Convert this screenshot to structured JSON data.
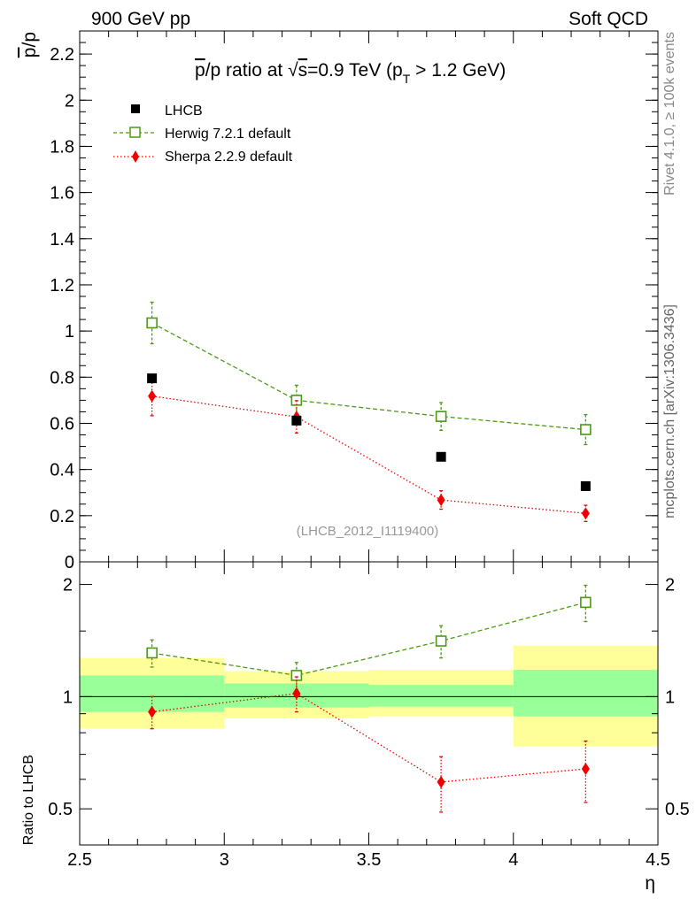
{
  "header": {
    "left": "900 GeV pp",
    "right": "Soft QCD"
  },
  "side_labels": {
    "rivet": "Rivet 4.1.0, ≥ 100k events",
    "mcplots": "mcplots.cern.ch [arXiv:1306.3436]"
  },
  "chart_data": [
    {
      "type": "scatter",
      "title": "p̅/p ratio at √s=0.9 TeV (pT > 1.2 GeV)",
      "title_parts": {
        "a": "p",
        "b": "/p ratio at ",
        "c": "s",
        "d": "=0.9 TeV (p",
        "e": "T",
        "f": " > 1.2 GeV)"
      },
      "ylabel": "p̅/p",
      "ylabel_parts": {
        "a": "p",
        "b": "/p"
      },
      "xlabel": "",
      "xlim": [
        2.5,
        4.5
      ],
      "ylim": [
        0,
        2.3
      ],
      "yticks": [
        0,
        0.2,
        0.4,
        0.6,
        0.8,
        1,
        1.2,
        1.4,
        1.6,
        1.8,
        2,
        2.2
      ],
      "ytick_labels": [
        "0",
        "0.2",
        "0.4",
        "0.6",
        "0.8",
        "1",
        "1.2",
        "1.4",
        "1.6",
        "1.8",
        "2",
        "2.2"
      ],
      "watermark": "(LHCB_2012_I1119400)",
      "legend_position": "top-left",
      "series": [
        {
          "name": "LHCB",
          "style": "data",
          "color": "#000000",
          "x": [
            2.75,
            3.25,
            3.75,
            4.25
          ],
          "y": [
            0.795,
            0.612,
            0.455,
            0.328
          ],
          "yerr": [
            0.01,
            0.01,
            0.01,
            0.01
          ]
        },
        {
          "name": "Herwig 7.2.1 default",
          "style": "open-square-dashed",
          "color": "#4b9a14",
          "x": [
            2.75,
            3.25,
            3.75,
            4.25
          ],
          "y": [
            1.035,
            0.7,
            0.63,
            0.573
          ],
          "yerr": [
            0.09,
            0.065,
            0.06,
            0.065
          ]
        },
        {
          "name": "Sherpa 2.2.9 default",
          "style": "diamond-dotted",
          "color": "#ee0000",
          "x": [
            2.75,
            3.25,
            3.75,
            4.25
          ],
          "y": [
            0.718,
            0.628,
            0.268,
            0.21
          ],
          "yerr": [
            0.085,
            0.07,
            0.04,
            0.035
          ]
        }
      ]
    },
    {
      "type": "scatter",
      "title": "",
      "ylabel": "Ratio to LHCB",
      "xlabel": "η",
      "xlim": [
        2.5,
        4.5
      ],
      "ylim": [
        0.4,
        2.3
      ],
      "yscale": "log",
      "yticks": [
        0.5,
        1,
        2
      ],
      "ytick_labels": [
        "0.5",
        "1",
        "2"
      ],
      "xticks": [
        2.5,
        3,
        3.5,
        4,
        4.5
      ],
      "xtick_labels": [
        "2.5",
        "3",
        "3.5",
        "4",
        "4.5"
      ],
      "reference_line": 1,
      "bands": [
        {
          "x": [
            2.5,
            3.0
          ],
          "inner": [
            0.91,
            1.14
          ],
          "outer": [
            0.82,
            1.27
          ]
        },
        {
          "x": [
            3.0,
            3.5
          ],
          "inner": [
            0.935,
            1.085
          ],
          "outer": [
            0.875,
            1.17
          ]
        },
        {
          "x": [
            3.5,
            4.0
          ],
          "inner": [
            0.94,
            1.075
          ],
          "outer": [
            0.885,
            1.18
          ]
        },
        {
          "x": [
            4.0,
            4.5
          ],
          "inner": [
            0.885,
            1.18
          ],
          "outer": [
            0.735,
            1.37
          ]
        }
      ],
      "series": [
        {
          "name": "Herwig 7.2.1 default",
          "style": "open-square-dashed",
          "color": "#4b9a14",
          "x": [
            2.75,
            3.25,
            3.75,
            4.25
          ],
          "y": [
            1.31,
            1.14,
            1.41,
            1.79
          ],
          "yerr": [
            0.11,
            0.095,
            0.14,
            0.2
          ]
        },
        {
          "name": "Sherpa 2.2.9 default",
          "style": "diamond-dotted",
          "color": "#ee0000",
          "x": [
            2.75,
            3.25,
            3.75,
            4.25
          ],
          "y": [
            0.91,
            1.02,
            0.59,
            0.64
          ],
          "yerr": [
            0.09,
            0.11,
            0.1,
            0.12
          ]
        }
      ]
    }
  ]
}
